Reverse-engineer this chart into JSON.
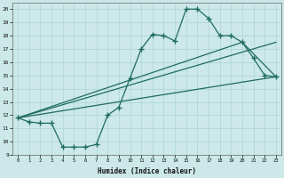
{
  "xlabel": "Humidex (Indice chaleur)",
  "bg_color": "#cce8e8",
  "line_color": "#1e6b60",
  "grid_color": "#aad4d4",
  "xlim": [
    -0.5,
    23.5
  ],
  "ylim": [
    9,
    20.5
  ],
  "xticks": [
    0,
    1,
    2,
    3,
    4,
    5,
    6,
    7,
    8,
    9,
    10,
    11,
    12,
    13,
    14,
    15,
    16,
    17,
    18,
    19,
    20,
    21,
    22,
    23
  ],
  "yticks": [
    9,
    10,
    11,
    12,
    13,
    14,
    15,
    16,
    17,
    18,
    19,
    20
  ],
  "line1_x": [
    0,
    1,
    2,
    3,
    4,
    5,
    6,
    7,
    8,
    9,
    10,
    11,
    12,
    13,
    14,
    15,
    16,
    17,
    18,
    19,
    20,
    21,
    22,
    23
  ],
  "line1_y": [
    11.8,
    11.5,
    11.4,
    11.4,
    9.6,
    9.6,
    9.6,
    9.8,
    12.0,
    12.6,
    14.8,
    17.0,
    18.1,
    18.0,
    17.6,
    20.0,
    20.0,
    19.3,
    18.0,
    18.0,
    17.5,
    16.3,
    15.0,
    14.9
  ],
  "line2_x": [
    0,
    23
  ],
  "line2_y": [
    11.8,
    14.9
  ],
  "line3_x": [
    0,
    23
  ],
  "line3_y": [
    11.8,
    17.5
  ],
  "line4_x": [
    0,
    20,
    23
  ],
  "line4_y": [
    11.8,
    17.5,
    14.9
  ],
  "marker_style": "+",
  "marker_size": 4,
  "linewidth": 0.9
}
